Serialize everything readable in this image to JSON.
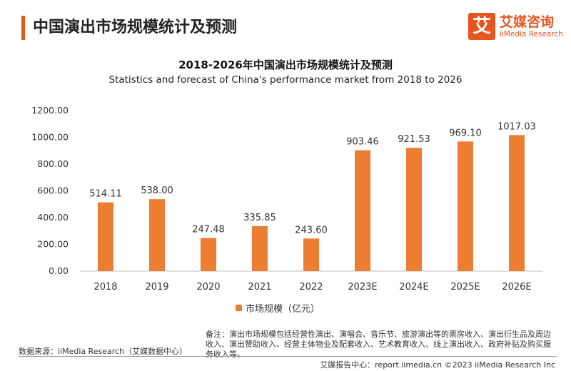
{
  "header": {
    "title": "中国演出市场规模统计及预测",
    "logo_badge": "艾",
    "logo_cn": "艾媒咨询",
    "logo_en": "iiMedia Research"
  },
  "colors": {
    "accent": "#e8541e",
    "bar": "#ed7d31"
  },
  "chart_data": {
    "type": "bar",
    "title": "2018-2026年中国演出市场规模统计及预测",
    "subtitle": "Statistics and forecast of China's performance market from 2018 to 2026",
    "categories": [
      "2018",
      "2019",
      "2020",
      "2021",
      "2022",
      "2023E",
      "2024E",
      "2025E",
      "2026E"
    ],
    "series": [
      {
        "name": "市场规模（亿元）",
        "values": [
          514.11,
          538.0,
          247.48,
          335.85,
          243.6,
          903.46,
          921.53,
          969.1,
          1017.03
        ]
      }
    ],
    "data_labels": [
      "514.11",
      "538.00",
      "247.48",
      "335.85",
      "243.60",
      "903.46",
      "921.53",
      "969.10",
      "1017.03"
    ],
    "y_ticks": [
      "0.00",
      "200.00",
      "400.00",
      "600.00",
      "800.00",
      "1000.00",
      "1200.00"
    ],
    "ylim": [
      0,
      1200
    ],
    "grid": false,
    "legend_position": "bottom"
  },
  "footer": {
    "note": "备注：演出市场规模包括经营性演出、演唱会、音乐节、旅游演出等的票房收入、演出衍生品及周边收入、演出赞助收入、经营主体物业及配套收入、艺术教育收入、线上演出收入、政府补贴及购买服务收入等。",
    "source": "数据来源：iiMedia Research（艾媒数据中心）",
    "credit": "艾媒报告中心：report.iimedia.cn  ©2023  iiMedia Research  Inc"
  }
}
